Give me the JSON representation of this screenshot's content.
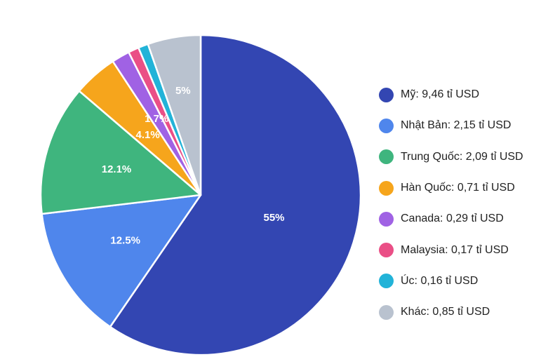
{
  "chart_data": {
    "type": "pie",
    "series": [
      {
        "name": "Mỹ",
        "legend_label": "Mỹ: 9,46 tỉ USD",
        "value": 9.46,
        "percent_label": "55%",
        "color": "#3346b2"
      },
      {
        "name": "Nhật Bản",
        "legend_label": "Nhật Bản: 2,15 tỉ USD",
        "value": 2.15,
        "percent_label": "12.5%",
        "color": "#4f86ec"
      },
      {
        "name": "Trung Quốc",
        "legend_label": "Trung Quốc: 2,09 tỉ USD",
        "value": 2.09,
        "percent_label": "12.1%",
        "color": "#3fb57e"
      },
      {
        "name": "Hàn Quốc",
        "legend_label": "Hàn Quốc: 0,71 tỉ USD",
        "value": 0.71,
        "percent_label": "4.1%",
        "color": "#f6a51c"
      },
      {
        "name": "Canada",
        "legend_label": "Canada: 0,29 tỉ USD",
        "value": 0.29,
        "percent_label": "1.7%",
        "color": "#a062e4"
      },
      {
        "name": "Malaysia",
        "legend_label": "Malaysia: 0,17 tỉ USD",
        "value": 0.17,
        "percent_label": "",
        "color": "#ea4f86"
      },
      {
        "name": "Úc",
        "legend_label": "Úc: 0,16 tỉ USD",
        "value": 0.16,
        "percent_label": "",
        "color": "#22b3d8"
      },
      {
        "name": "Khác",
        "legend_label": "Khác: 0,85 tỉ USD",
        "value": 0.85,
        "percent_label": "5%",
        "color": "#b9c2cf"
      }
    ],
    "legend_position": "right"
  }
}
